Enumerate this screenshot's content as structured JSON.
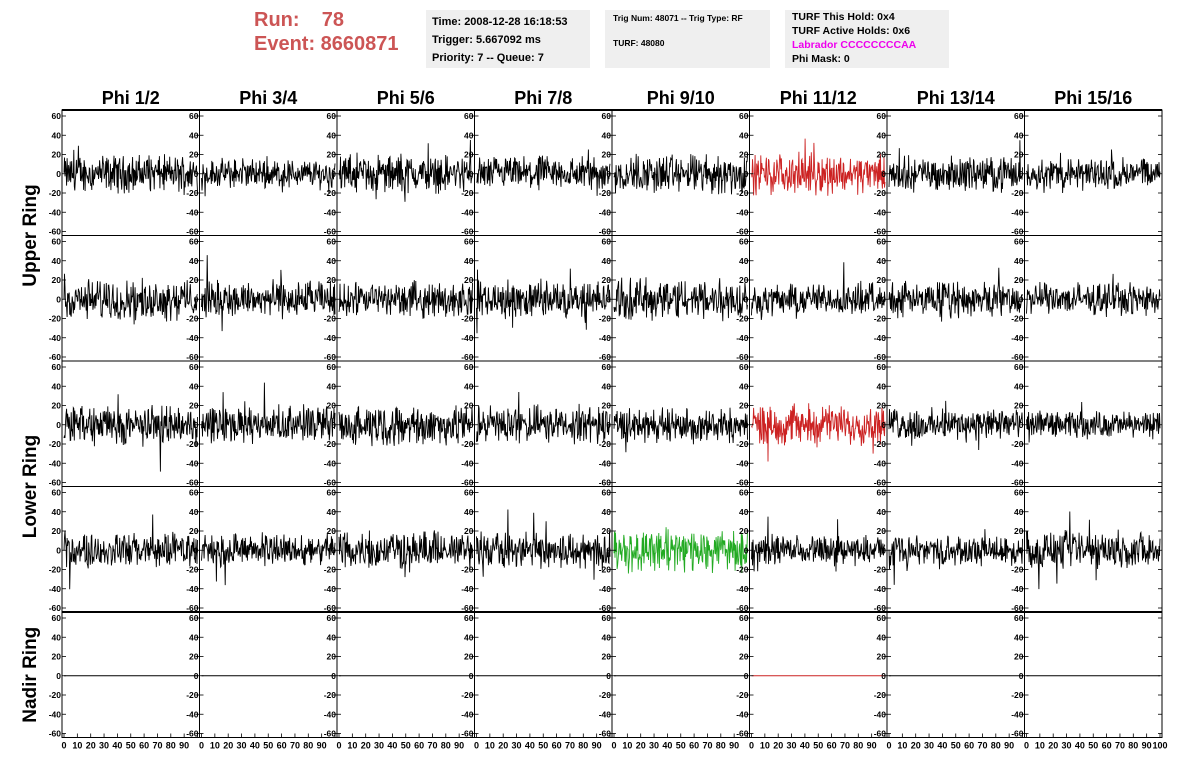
{
  "run": {
    "run_label": "Run:    78",
    "event_label": "Event: 8660871"
  },
  "info_time": {
    "time": "Time: 2008-12-28 16:18:53",
    "trigger": "Trigger: 5.667092 ms",
    "priority": "Priority: 7 -- Queue: 7"
  },
  "info_trig": {
    "trig_num": "Trig Num: 48071 -- Trig Type: RF",
    "turf": "TURF: 48080"
  },
  "info_turf": {
    "this_hold": "TURF This Hold: 0x4",
    "active_holds": "TURF Active Holds: 0x6",
    "labrador": "Labrador CCCCCCCCAA",
    "labrador_color": "#ee00ee",
    "phi_mask": "Phi Mask: 0"
  },
  "columns": [
    "Phi 1/2",
    "Phi 3/4",
    "Phi 5/6",
    "Phi 7/8",
    "Phi 9/10",
    "Phi 11/12",
    "Phi 13/14",
    "Phi 15/16"
  ],
  "rows": [
    "Upper Ring",
    "Lower Ring",
    "Nadir Ring"
  ],
  "y_ticks": [
    "60",
    "40",
    "20",
    "0",
    "-20",
    "-40",
    "-60"
  ],
  "x_ticks": [
    "0",
    "10",
    "20",
    "30",
    "40",
    "50",
    "60",
    "70",
    "80",
    "90",
    "100"
  ],
  "colors": {
    "default": "#000000",
    "red": "#cc2222",
    "green": "#22aa22"
  },
  "chart_data": {
    "type": "line",
    "ylim": [
      -60,
      60
    ],
    "xlim": [
      0,
      100
    ],
    "grid": false,
    "panels": [
      {
        "row": 0,
        "col": 0,
        "color": "default",
        "amp": 14
      },
      {
        "row": 0,
        "col": 1,
        "color": "default",
        "amp": 11
      },
      {
        "row": 0,
        "col": 2,
        "color": "default",
        "amp": 14
      },
      {
        "row": 0,
        "col": 3,
        "color": "default",
        "amp": 13
      },
      {
        "row": 0,
        "col": 4,
        "color": "default",
        "amp": 15
      },
      {
        "row": 0,
        "col": 5,
        "color": "red",
        "amp": 15
      },
      {
        "row": 0,
        "col": 6,
        "color": "default",
        "amp": 13
      },
      {
        "row": 0,
        "col": 7,
        "color": "default",
        "amp": 12
      },
      {
        "row": 1,
        "col": 0,
        "color": "default",
        "amp": 15
      },
      {
        "row": 1,
        "col": 1,
        "color": "default",
        "amp": 14
      },
      {
        "row": 1,
        "col": 2,
        "color": "default",
        "amp": 13
      },
      {
        "row": 1,
        "col": 3,
        "color": "default",
        "amp": 14
      },
      {
        "row": 1,
        "col": 4,
        "color": "default",
        "amp": 16
      },
      {
        "row": 1,
        "col": 5,
        "color": "default",
        "amp": 12
      },
      {
        "row": 1,
        "col": 6,
        "color": "default",
        "amp": 13
      },
      {
        "row": 1,
        "col": 7,
        "color": "default",
        "amp": 12
      },
      {
        "row": 2,
        "col": 0,
        "color": "default",
        "amp": 15
      },
      {
        "row": 2,
        "col": 1,
        "color": "default",
        "amp": 14
      },
      {
        "row": 2,
        "col": 2,
        "color": "default",
        "amp": 15
      },
      {
        "row": 2,
        "col": 3,
        "color": "default",
        "amp": 14
      },
      {
        "row": 2,
        "col": 4,
        "color": "default",
        "amp": 13
      },
      {
        "row": 2,
        "col": 5,
        "color": "red",
        "amp": 15
      },
      {
        "row": 2,
        "col": 6,
        "color": "default",
        "amp": 12
      },
      {
        "row": 2,
        "col": 7,
        "color": "default",
        "amp": 10
      },
      {
        "row": 3,
        "col": 0,
        "color": "default",
        "amp": 13
      },
      {
        "row": 3,
        "col": 1,
        "color": "default",
        "amp": 12
      },
      {
        "row": 3,
        "col": 2,
        "color": "default",
        "amp": 14
      },
      {
        "row": 3,
        "col": 3,
        "color": "default",
        "amp": 14
      },
      {
        "row": 3,
        "col": 4,
        "color": "green",
        "amp": 16
      },
      {
        "row": 3,
        "col": 5,
        "color": "default",
        "amp": 11
      },
      {
        "row": 3,
        "col": 6,
        "color": "default",
        "amp": 11
      },
      {
        "row": 3,
        "col": 7,
        "color": "default",
        "amp": 14
      },
      {
        "row": 4,
        "col": 0,
        "color": "default",
        "amp": 0
      },
      {
        "row": 4,
        "col": 1,
        "color": "default",
        "amp": 0
      },
      {
        "row": 4,
        "col": 2,
        "color": "default",
        "amp": 0
      },
      {
        "row": 4,
        "col": 3,
        "color": "default",
        "amp": 0
      },
      {
        "row": 4,
        "col": 4,
        "color": "default",
        "amp": 0
      },
      {
        "row": 4,
        "col": 5,
        "color": "red",
        "amp": 0
      },
      {
        "row": 4,
        "col": 6,
        "color": "default",
        "amp": 0
      },
      {
        "row": 4,
        "col": 7,
        "color": "default",
        "amp": 0
      }
    ]
  }
}
